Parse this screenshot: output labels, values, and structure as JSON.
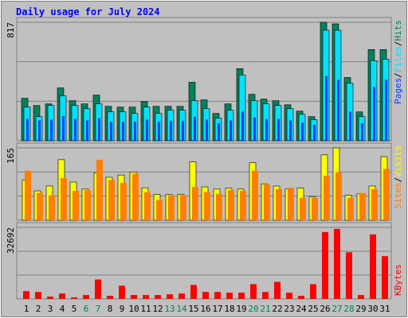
{
  "chart_data": [
    {
      "type": "bar",
      "title": "Daily usage for July 2024",
      "ylim": [
        0,
        817
      ],
      "yticks": [
        817
      ],
      "legend_separator": "/",
      "series": [
        {
          "name": "Hits",
          "color": "#00805c",
          "values": [
            293,
            243,
            254,
            364,
            276,
            254,
            315,
            237,
            232,
            232,
            270,
            237,
            237,
            237,
            403,
            282,
            188,
            254,
            497,
            320,
            287,
            276,
            248,
            204,
            166,
            817,
            806,
            436,
            199,
            629,
            629
          ]
        },
        {
          "name": "Files",
          "color": "#00e0ff",
          "values": [
            232,
            166,
            243,
            309,
            243,
            221,
            254,
            199,
            199,
            188,
            232,
            188,
            210,
            210,
            276,
            221,
            155,
            210,
            453,
            276,
            254,
            243,
            221,
            182,
            144,
            762,
            762,
            397,
            166,
            552,
            563
          ]
        },
        {
          "name": "Pages",
          "color": "#0040ff",
          "values": [
            150,
            140,
            145,
            170,
            150,
            140,
            155,
            130,
            130,
            130,
            145,
            130,
            135,
            135,
            165,
            145,
            120,
            140,
            200,
            160,
            150,
            150,
            140,
            125,
            110,
            447,
            420,
            200,
            120,
            370,
            420
          ]
        }
      ]
    },
    {
      "type": "bar",
      "ylim": [
        0,
        165
      ],
      "yticks": [
        165
      ],
      "legend_separator": "/",
      "series": [
        {
          "name": "Visits",
          "color": "#ffff00",
          "values": [
            92,
            67,
            78,
            138,
            87,
            71,
            108,
            98,
            103,
            110,
            74,
            59,
            59,
            59,
            133,
            76,
            71,
            73,
            71,
            131,
            83,
            78,
            71,
            73,
            53,
            149,
            165,
            57,
            60,
            78,
            145
          ]
        },
        {
          "name": "Sites",
          "color": "#ff8000",
          "values": [
            113,
            62,
            57,
            96,
            67,
            69,
            138,
            92,
            85,
            106,
            64,
            46,
            57,
            57,
            76,
            64,
            60,
            69,
            67,
            113,
            81,
            71,
            74,
            51,
            51,
            101,
            110,
            51,
            62,
            71,
            117
          ]
        }
      ]
    },
    {
      "type": "bar",
      "ylim": [
        0,
        32692
      ],
      "yticks": [
        32692
      ],
      "categories": [
        "1",
        "2",
        "3",
        "4",
        "5",
        "6",
        "7",
        "8",
        "9",
        "10",
        "11",
        "12",
        "13",
        "14",
        "15",
        "16",
        "17",
        "18",
        "19",
        "20",
        "21",
        "22",
        "23",
        "24",
        "25",
        "26",
        "27",
        "28",
        "29",
        "30",
        "31"
      ],
      "category_colors": [
        "#000000",
        "#000000",
        "#000000",
        "#000000",
        "#000000",
        "#00805c",
        "#00805c",
        "#000000",
        "#000000",
        "#000000",
        "#000000",
        "#000000",
        "#00805c",
        "#00805c",
        "#000000",
        "#000000",
        "#000000",
        "#000000",
        "#000000",
        "#00805c",
        "#00805c",
        "#000000",
        "#000000",
        "#000000",
        "#000000",
        "#000000",
        "#00805c",
        "#00805c",
        "#000000",
        "#000000",
        "#000000"
      ],
      "series": [
        {
          "name": "KBytes",
          "color": "#ff0000",
          "values": [
            3553,
            3198,
            1066,
            2487,
            711,
            1777,
            8884,
            1421,
            6041,
            1777,
            1777,
            1777,
            2132,
            2487,
            6396,
            3198,
            3198,
            2843,
            2843,
            6752,
            3198,
            7818,
            2843,
            1421,
            6752,
            30564,
            31985,
            21321,
            1777,
            29498,
            19544
          ]
        }
      ]
    }
  ]
}
